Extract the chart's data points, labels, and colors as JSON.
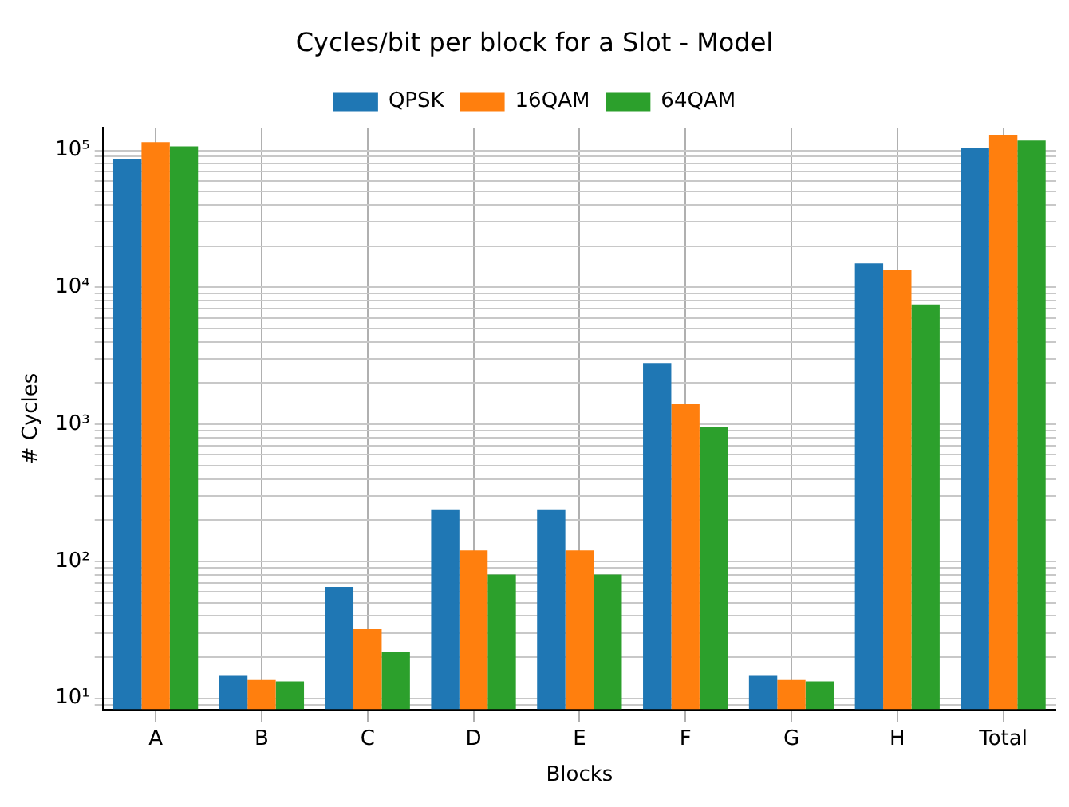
{
  "chart_data": {
    "type": "bar",
    "title": "Cycles/bit per block for a Slot - Model",
    "xlabel": "Blocks",
    "ylabel": "# Cycles",
    "categories": [
      "A",
      "B",
      "C",
      "D",
      "E",
      "F",
      "G",
      "H",
      "Total"
    ],
    "series": [
      {
        "name": "QPSK",
        "color": "#1f77b4",
        "values": [
          87000,
          14.6,
          65,
          240,
          240,
          2800,
          14.6,
          15000,
          105000
        ]
      },
      {
        "name": "16QAM",
        "color": "#ff7f0e",
        "values": [
          115000,
          13.6,
          32,
          120,
          120,
          1400,
          13.6,
          13300,
          130000
        ]
      },
      {
        "name": "64QAM",
        "color": "#2ca02c",
        "values": [
          107000,
          13.3,
          22,
          80,
          80,
          950,
          13.3,
          7500,
          118000
        ]
      }
    ],
    "log": true,
    "ylim": [
      8.3,
      146000
    ],
    "yticks": [
      {
        "value": 9,
        "label": null
      },
      {
        "value": 10,
        "label": "10¹"
      },
      {
        "value": 20,
        "label": null
      },
      {
        "value": 30,
        "label": null
      },
      {
        "value": 40,
        "label": null
      },
      {
        "value": 50,
        "label": null
      },
      {
        "value": 60,
        "label": null
      },
      {
        "value": 70,
        "label": null
      },
      {
        "value": 80,
        "label": null
      },
      {
        "value": 90,
        "label": null
      },
      {
        "value": 100,
        "label": "10²"
      },
      {
        "value": 200,
        "label": null
      },
      {
        "value": 300,
        "label": null
      },
      {
        "value": 400,
        "label": null
      },
      {
        "value": 500,
        "label": null
      },
      {
        "value": 600,
        "label": null
      },
      {
        "value": 700,
        "label": null
      },
      {
        "value": 800,
        "label": null
      },
      {
        "value": 900,
        "label": null
      },
      {
        "value": 1000,
        "label": "10³"
      },
      {
        "value": 2000,
        "label": null
      },
      {
        "value": 3000,
        "label": null
      },
      {
        "value": 4000,
        "label": null
      },
      {
        "value": 5000,
        "label": null
      },
      {
        "value": 6000,
        "label": null
      },
      {
        "value": 7000,
        "label": null
      },
      {
        "value": 8000,
        "label": null
      },
      {
        "value": 9000,
        "label": null
      },
      {
        "value": 10000,
        "label": "10⁴"
      },
      {
        "value": 20000,
        "label": null
      },
      {
        "value": 30000,
        "label": null
      },
      {
        "value": 40000,
        "label": null
      },
      {
        "value": 50000,
        "label": null
      },
      {
        "value": 60000,
        "label": null
      },
      {
        "value": 70000,
        "label": null
      },
      {
        "value": 80000,
        "label": null
      },
      {
        "value": 90000,
        "label": null
      },
      {
        "value": 100000,
        "label": "10⁵"
      }
    ],
    "grid": true,
    "legend": "top"
  }
}
